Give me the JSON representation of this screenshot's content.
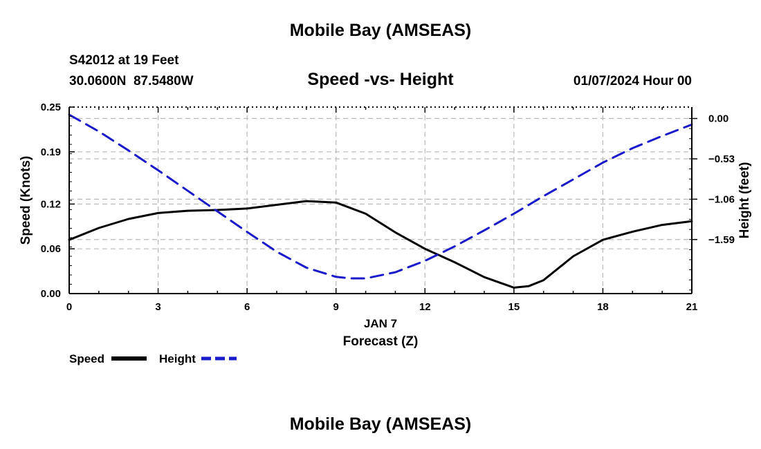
{
  "header": {
    "title": "Mobile Bay (AMSEAS)",
    "station": "S42012 at 19 Feet",
    "coords": "30.0600N  87.5480W",
    "date": "01/07/2024 Hour 00"
  },
  "footer": {
    "title": "Mobile Bay (AMSEAS)"
  },
  "colors": {
    "speed": "#000000",
    "height": "#1a1acc",
    "grid": "#b8b8b8"
  },
  "chart_data": {
    "type": "line",
    "title": "Speed -vs- Height",
    "xlabel": "Forecast (Z)",
    "xsublabel": "JAN 7",
    "ylabel": "Speed (Knots)",
    "y2label": "Height (feet)",
    "xlim": [
      0,
      21
    ],
    "ylim": [
      0,
      0.25
    ],
    "y2lim": [
      -2.3,
      0.15
    ],
    "x_ticks": [
      0,
      3,
      6,
      9,
      12,
      15,
      18,
      21
    ],
    "x_tick_labels": [
      "0",
      "3",
      "6",
      "9",
      "12",
      "15",
      "18",
      "21"
    ],
    "y_ticks": [
      0.0,
      0.06,
      0.12,
      0.19,
      0.25
    ],
    "y_tick_labels": [
      "0.00",
      "0.06",
      "0.12",
      "0.19",
      "0.25"
    ],
    "y2_ticks": [
      0.0,
      -0.53,
      -1.06,
      -1.59
    ],
    "y2_tick_labels": [
      "0.00",
      "−0.53",
      "−1.06",
      "−1.59"
    ],
    "grid": true,
    "legend_labels": [
      "Speed",
      "Height"
    ],
    "series": [
      {
        "name": "Speed",
        "axis": "left",
        "style": "solid",
        "x": [
          0,
          1,
          2,
          3,
          4,
          5,
          6,
          7,
          8,
          9,
          10,
          11,
          12,
          13,
          14,
          15,
          15.5,
          16,
          17,
          18,
          19,
          20,
          21
        ],
        "values": [
          0.072,
          0.088,
          0.1,
          0.108,
          0.111,
          0.112,
          0.114,
          0.119,
          0.124,
          0.122,
          0.107,
          0.082,
          0.06,
          0.042,
          0.022,
          0.008,
          0.01,
          0.018,
          0.05,
          0.072,
          0.083,
          0.092,
          0.097
        ]
      },
      {
        "name": "Height",
        "axis": "right",
        "style": "dashed",
        "x": [
          0,
          1,
          2,
          3,
          4,
          5,
          6,
          7,
          8,
          9,
          9.5,
          10,
          11,
          12,
          13,
          14,
          15,
          16,
          17,
          18,
          19,
          20,
          21
        ],
        "values": [
          0.05,
          -0.17,
          -0.42,
          -0.68,
          -0.95,
          -1.22,
          -1.49,
          -1.75,
          -1.96,
          -2.08,
          -2.1,
          -2.1,
          -2.02,
          -1.87,
          -1.68,
          -1.47,
          -1.25,
          -1.02,
          -0.8,
          -0.58,
          -0.39,
          -0.23,
          -0.08
        ]
      }
    ]
  }
}
